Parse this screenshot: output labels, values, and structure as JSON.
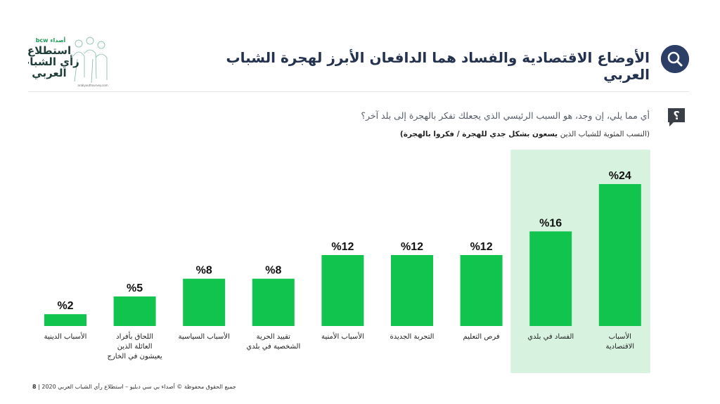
{
  "header": {
    "title": "الأوضاع الاقتصادية والفساد هما الدافعان الأبرز لهجرة الشباب العربي",
    "question": "أي مما يلي، إن وجد، هو السبب الرئيسي الذي يجعلك تفكر بالهجرة إلى بلد آخر؟",
    "subtitle_prefix": "(النسب المئوية للشباب الذين",
    "subtitle_bold": "يسعون بشكل جدي للهجرة / فكروا بالهجرة)"
  },
  "logo": {
    "brand": "bcw أصداء",
    "line1": "استطلاع",
    "line2": "رأي الشباب",
    "line3": "العربي",
    "url": "arabyouthsurvey.com"
  },
  "footer": {
    "rights": "جميع الحقوق محفوظة © أصداء بي سي دبليو – استطلاع رأي الشباب العربي 2020",
    "separator": "|",
    "page": "8"
  },
  "colors": {
    "bar": "#11c44e",
    "highlight": "#d7f3df",
    "title": "#24324f",
    "badge": "#2c3e66"
  },
  "chart_data": {
    "type": "bar",
    "categories": [
      "الأسباب الدينية",
      "اللحاق بأفراد العائلة الذين يعيشون في الخارج",
      "الأسباب السياسية",
      "تقييد الحرية الشخصية في بلدي",
      "الأسباب الأمنية",
      "التجربة الجديدة",
      "فرص التعليم",
      "الفساد في بلدي",
      "الأسباب الاقتصادية"
    ],
    "values": [
      2,
      5,
      8,
      8,
      12,
      12,
      12,
      16,
      24
    ],
    "value_labels": [
      "%2",
      "%5",
      "%8",
      "%8",
      "%12",
      "%12",
      "%12",
      "%16",
      "%24"
    ],
    "highlighted": [
      7,
      8
    ],
    "ylim": [
      0,
      24
    ]
  }
}
